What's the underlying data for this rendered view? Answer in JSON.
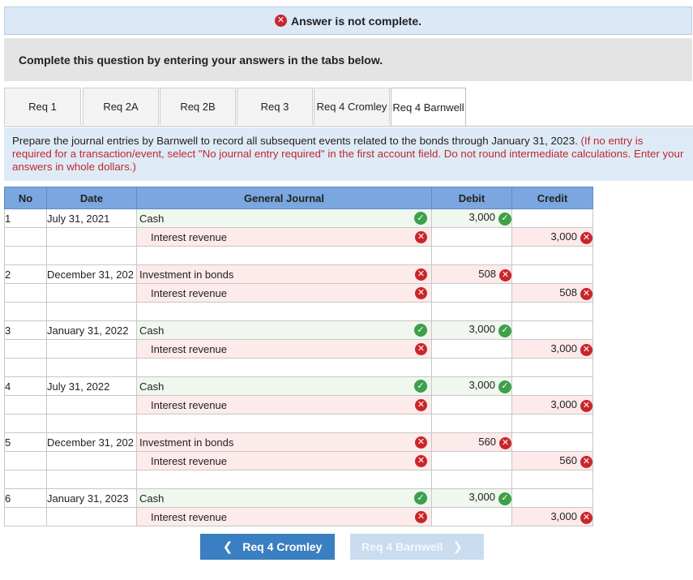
{
  "banner": {
    "text": "Answer is not complete."
  },
  "instruction": "Complete this question by entering your answers in the tabs below.",
  "tabs": [
    {
      "label": "Req 1",
      "active": false
    },
    {
      "label": "Req 2A",
      "active": false
    },
    {
      "label": "Req 2B",
      "active": false
    },
    {
      "label": "Req 3",
      "active": false
    },
    {
      "label": "Req 4 Cromley",
      "active": false
    },
    {
      "label": "Req 4 Barnwell",
      "active": true
    }
  ],
  "prompt": {
    "main": "Prepare the journal entries by Barnwell to record all subsequent events related to the bonds through January 31, 2023.",
    "note": "(If no entry is required for a transaction/event, select \"No journal entry required\" in the first account field. Do not round intermediate calculations.  Enter your answers in whole dollars.)"
  },
  "table": {
    "headers": {
      "no": "No",
      "date": "Date",
      "journal": "General Journal",
      "debit": "Debit",
      "credit": "Credit"
    },
    "rows": [
      {
        "no": "1",
        "date": "July 31, 2021",
        "account": "Cash",
        "status": "correct",
        "debit": "3,000",
        "debit_status": "correct",
        "credit": "",
        "credit_status": ""
      },
      {
        "no": "",
        "date": "",
        "account": "Interest revenue",
        "status": "incorrect",
        "debit": "",
        "debit_status": "",
        "credit": "3,000",
        "credit_status": "incorrect"
      },
      {
        "no": "2",
        "date": "December 31, 202",
        "account": "Investment in bonds",
        "status": "incorrect",
        "debit": "508",
        "debit_status": "incorrect",
        "credit": "",
        "credit_status": ""
      },
      {
        "no": "",
        "date": "",
        "account": "Interest revenue",
        "status": "incorrect",
        "debit": "",
        "debit_status": "",
        "credit": "508",
        "credit_status": "incorrect"
      },
      {
        "no": "3",
        "date": "January 31, 2022",
        "account": "Cash",
        "status": "correct",
        "debit": "3,000",
        "debit_status": "correct",
        "credit": "",
        "credit_status": ""
      },
      {
        "no": "",
        "date": "",
        "account": "Interest revenue",
        "status": "incorrect",
        "debit": "",
        "debit_status": "",
        "credit": "3,000",
        "credit_status": "incorrect"
      },
      {
        "no": "4",
        "date": "July 31, 2022",
        "account": "Cash",
        "status": "correct",
        "debit": "3,000",
        "debit_status": "correct",
        "credit": "",
        "credit_status": ""
      },
      {
        "no": "",
        "date": "",
        "account": "Interest revenue",
        "status": "incorrect",
        "debit": "",
        "debit_status": "",
        "credit": "3,000",
        "credit_status": "incorrect"
      },
      {
        "no": "5",
        "date": "December 31, 202",
        "account": "Investment in bonds",
        "status": "incorrect",
        "debit": "560",
        "debit_status": "incorrect",
        "credit": "",
        "credit_status": ""
      },
      {
        "no": "",
        "date": "",
        "account": "Interest revenue",
        "status": "incorrect",
        "debit": "",
        "debit_status": "",
        "credit": "560",
        "credit_status": "incorrect"
      },
      {
        "no": "6",
        "date": "January 31, 2023",
        "account": "Cash",
        "status": "correct",
        "debit": "3,000",
        "debit_status": "correct",
        "credit": "",
        "credit_status": ""
      },
      {
        "no": "",
        "date": "",
        "account": "Interest revenue",
        "status": "incorrect",
        "debit": "",
        "debit_status": "",
        "credit": "3,000",
        "credit_status": "incorrect"
      }
    ]
  },
  "nav": {
    "prev_label": "Req 4 Cromley",
    "next_label": "Req 4 Barnwell"
  },
  "colors": {
    "correct": "#3ea04a",
    "incorrect": "#c8262b",
    "header": "#7aa7df"
  }
}
